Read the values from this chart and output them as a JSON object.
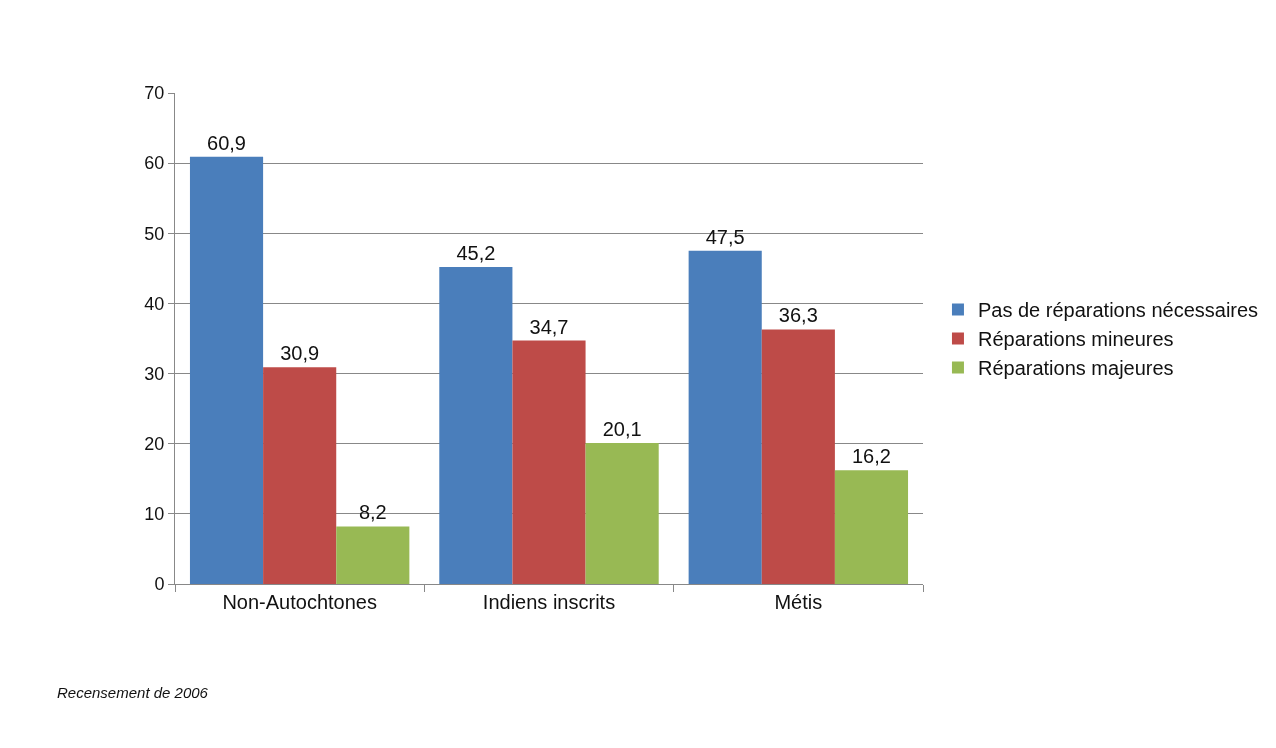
{
  "chart_data": {
    "type": "bar",
    "categories": [
      "Non-Autochtones",
      "Indiens inscrits",
      "Métis"
    ],
    "series": [
      {
        "name": "Pas de réparations nécessaires",
        "color": "#4a7ebb",
        "values": [
          60.9,
          45.2,
          47.5
        ],
        "value_labels": [
          "60,9",
          "45,2",
          "47,5"
        ]
      },
      {
        "name": "Réparations mineures",
        "color": "#be4b48",
        "values": [
          30.9,
          34.7,
          36.3
        ],
        "value_labels": [
          "30,9",
          "34,7",
          "36,3"
        ]
      },
      {
        "name": "Réparations majeures",
        "color": "#98b954",
        "values": [
          8.2,
          20.1,
          16.2
        ],
        "value_labels": [
          "8,2",
          "20,1",
          "16,2"
        ]
      }
    ],
    "ylim": [
      0,
      70
    ],
    "yticks": [
      0,
      10,
      20,
      30,
      40,
      50,
      60,
      70
    ],
    "grid": "y",
    "legend": "right",
    "annotations": [
      "Recensement de 2006"
    ]
  }
}
